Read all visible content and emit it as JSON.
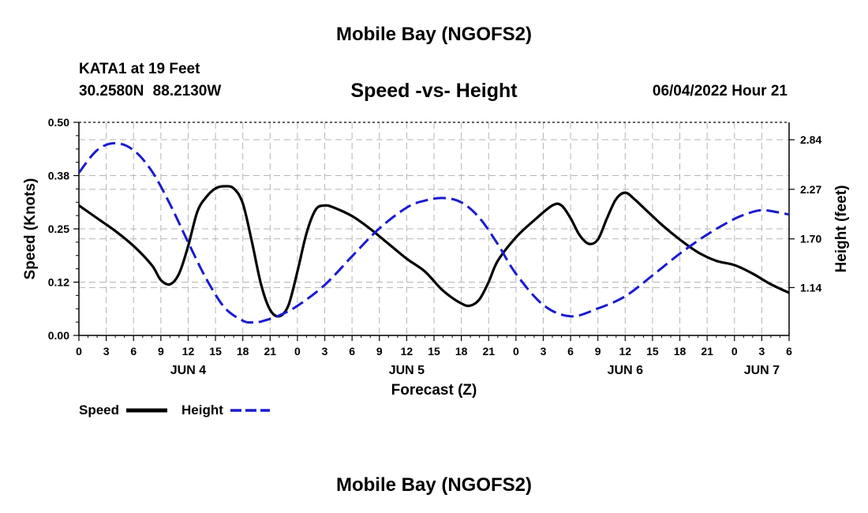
{
  "header": {
    "main_title": "Mobile Bay (NGOFS2)",
    "station": "KATA1 at 19 Feet",
    "coords": "30.2580N  88.2130W",
    "chart_title": "Speed -vs- Height",
    "datetime": "06/04/2022 Hour 21"
  },
  "footer": {
    "bottom_title": "Mobile Bay (NGOFS2)"
  },
  "colors": {
    "speed": "#000000",
    "height": "#1a1ad0",
    "grid": "#b5b5b5"
  },
  "chart_data": {
    "type": "line",
    "title": "Speed -vs- Height",
    "xlabel": "Forecast (Z)",
    "ylabel": "Speed (Knots)",
    "y2label": "Height (feet)",
    "x_range_hours": [
      0,
      78
    ],
    "x_tick_step_hours": 3,
    "x_tick_labels": [
      "0",
      "3",
      "6",
      "9",
      "12",
      "15",
      "18",
      "21",
      "0",
      "3",
      "6",
      "9",
      "12",
      "15",
      "18",
      "21",
      "0",
      "3",
      "6",
      "9",
      "12",
      "15",
      "18",
      "21",
      "0",
      "3",
      "6"
    ],
    "date_labels": [
      {
        "label": "JUN 4",
        "hour": 12
      },
      {
        "label": "JUN 5",
        "hour": 36
      },
      {
        "label": "JUN 6",
        "hour": 60
      },
      {
        "label": "JUN 7",
        "hour": 75
      }
    ],
    "ylim": [
      0,
      0.5
    ],
    "y_ticks": [
      "0.00",
      "0.12",
      "0.25",
      "0.38",
      "0.50"
    ],
    "y2lim": [
      0.59,
      3.04
    ],
    "y2_ticks": [
      "1.14",
      "1.70",
      "2.27",
      "2.84"
    ],
    "legend": [
      "Speed",
      "Height"
    ],
    "legend_position": "bottom-left",
    "series": [
      {
        "name": "Speed",
        "axis": "left",
        "style": "solid",
        "x": [
          0,
          2,
          4,
          6,
          8,
          9,
          10,
          11,
          12,
          13,
          14,
          15,
          16,
          17,
          18,
          19,
          20,
          21,
          22,
          23,
          24,
          25,
          26,
          27,
          28,
          30,
          32,
          34,
          36,
          38,
          40,
          42,
          43,
          44,
          45,
          46,
          48,
          50,
          52,
          53,
          54,
          55,
          56,
          57,
          58,
          59,
          60,
          61,
          62,
          63,
          64,
          66,
          68,
          70,
          72,
          74,
          76,
          78
        ],
        "values": [
          0.305,
          0.275,
          0.245,
          0.21,
          0.165,
          0.13,
          0.12,
          0.145,
          0.21,
          0.29,
          0.325,
          0.345,
          0.35,
          0.345,
          0.31,
          0.22,
          0.12,
          0.06,
          0.045,
          0.07,
          0.15,
          0.24,
          0.295,
          0.305,
          0.3,
          0.28,
          0.25,
          0.215,
          0.18,
          0.15,
          0.105,
          0.075,
          0.07,
          0.085,
          0.125,
          0.175,
          0.23,
          0.27,
          0.305,
          0.305,
          0.275,
          0.235,
          0.215,
          0.225,
          0.275,
          0.32,
          0.335,
          0.32,
          0.3,
          0.28,
          0.26,
          0.225,
          0.195,
          0.175,
          0.165,
          0.145,
          0.12,
          0.1
        ]
      },
      {
        "name": "Height",
        "axis": "right",
        "style": "dashed",
        "x": [
          0,
          2,
          4,
          6,
          8,
          10,
          12,
          14,
          16,
          18,
          19,
          20,
          22,
          24,
          27,
          30,
          33,
          36,
          38,
          40,
          42,
          44,
          46,
          48,
          51,
          54,
          57,
          60,
          63,
          66,
          69,
          72,
          74,
          75,
          76,
          78
        ],
        "values": [
          2.46,
          2.72,
          2.8,
          2.72,
          2.48,
          2.1,
          1.66,
          1.24,
          0.91,
          0.76,
          0.74,
          0.75,
          0.82,
          0.93,
          1.17,
          1.5,
          1.82,
          2.06,
          2.14,
          2.17,
          2.12,
          1.94,
          1.64,
          1.3,
          0.94,
          0.81,
          0.9,
          1.04,
          1.28,
          1.53,
          1.75,
          1.93,
          2.01,
          2.03,
          2.02,
          1.98
        ]
      }
    ]
  }
}
